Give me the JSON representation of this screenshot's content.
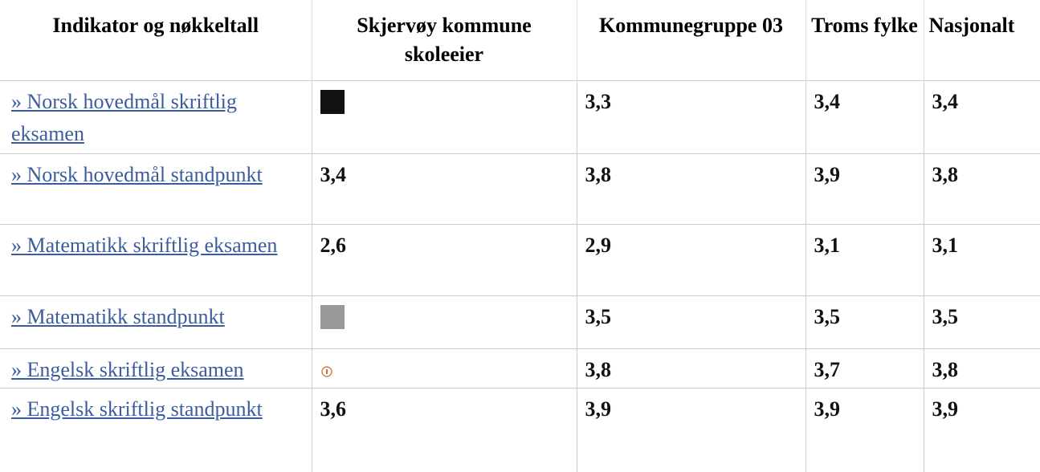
{
  "table": {
    "header": [
      "Indikator og nøkkeltall",
      "Skjervøy kommune skoleeier",
      "Kommunegruppe 03",
      "Troms fylke",
      "Nasjonalt"
    ],
    "rows": [
      [
        "» Norsk hovedmål skriftlig eksamen",
        null,
        "3,3",
        "3,4",
        "3,4"
      ],
      [
        "» Norsk hovedmål standpunkt",
        "3,4",
        "3,8",
        "3,9",
        "3,8"
      ],
      [
        "» Matematikk skriftlig eksamen",
        "2,6",
        "2,9",
        "3,1",
        "3,1"
      ],
      [
        "» Matematikk standpunkt",
        null,
        "3,5",
        "3,5",
        "3,5"
      ],
      [
        "» Engelsk skriftlig eksamen",
        null,
        "3,8",
        "3,7",
        "3,8"
      ],
      [
        "» Engelsk skriftlig standpunkt",
        "3,6",
        "3,9",
        "3,9",
        "3,9"
      ]
    ]
  }
}
